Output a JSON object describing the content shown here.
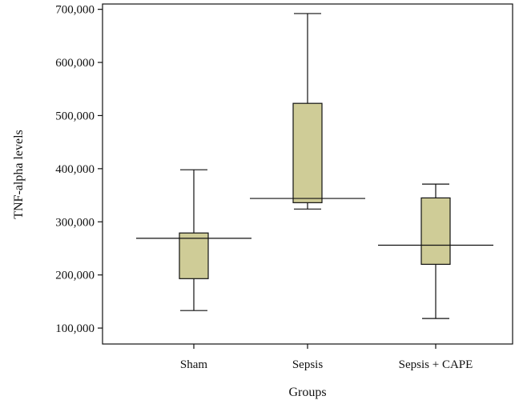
{
  "chart_data": {
    "type": "box",
    "title": "",
    "xlabel": "Groups",
    "ylabel": "TNF-alpha levels",
    "categories": [
      "Sham",
      "Sepsis",
      "Sepsis + CAPE"
    ],
    "ylim": [
      70000,
      710000
    ],
    "yticks": [
      100000,
      200000,
      300000,
      400000,
      500000,
      600000,
      700000
    ],
    "ytick_labels": [
      "100,000",
      "200,000",
      "300,000",
      "400,000",
      "500,000",
      "600,000",
      "700,000"
    ],
    "boxes": [
      {
        "category": "Sham",
        "min": 133000,
        "q1": 193000,
        "q3": 279000,
        "max": 398000,
        "reference": 269000
      },
      {
        "category": "Sepsis",
        "min": 324000,
        "q1": 336000,
        "q3": 523000,
        "max": 692000,
        "reference": 344000
      },
      {
        "category": "Sepsis + CAPE",
        "min": 118000,
        "q1": 220000,
        "q3": 345000,
        "max": 371000,
        "reference": 256000
      }
    ],
    "grid": false,
    "legend": "none",
    "colors": {
      "box_fill": "#cfcc97",
      "line": "#111111",
      "background": "#ffffff"
    }
  }
}
